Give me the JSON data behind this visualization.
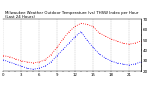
{
  "title": "Milwaukee Weather Outdoor Temperature (vs) THSW Index per Hour (Last 24 Hours)",
  "hours": [
    0,
    1,
    2,
    3,
    4,
    5,
    6,
    7,
    8,
    9,
    10,
    11,
    12,
    13,
    14,
    15,
    16,
    17,
    18,
    19,
    20,
    21,
    22,
    23
  ],
  "temp": [
    35,
    34,
    32,
    30,
    29,
    28,
    29,
    31,
    36,
    43,
    51,
    58,
    63,
    66,
    65,
    63,
    57,
    54,
    51,
    49,
    47,
    46,
    47,
    49
  ],
  "thsw": [
    31,
    29,
    27,
    25,
    23,
    22,
    23,
    25,
    29,
    35,
    41,
    47,
    53,
    58,
    50,
    43,
    37,
    33,
    30,
    28,
    27,
    26,
    27,
    29
  ],
  "temp_color": "#ff0000",
  "thsw_color": "#0000ff",
  "background_color": "#ffffff",
  "grid_color": "#999999",
  "ylim": [
    20,
    70
  ],
  "ytick_positions": [
    20,
    25,
    30,
    35,
    40,
    45,
    50,
    55,
    60,
    65,
    70
  ],
  "ytick_labels": [
    "20",
    "",
    "30",
    "",
    "40",
    "",
    "50",
    "",
    "60",
    "",
    "70"
  ],
  "ylabel_fontsize": 3.0,
  "title_fontsize": 2.8,
  "xlabel_fontsize": 2.8,
  "linewidth": 0.6,
  "markersize": 0.9
}
